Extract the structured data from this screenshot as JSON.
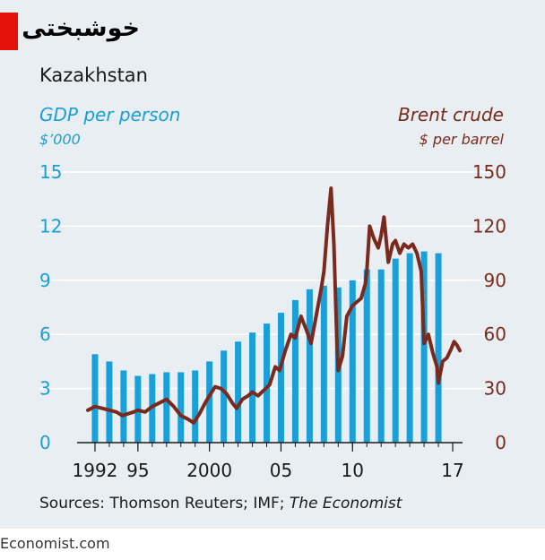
{
  "title": "خوشبختی",
  "subtitle": "Kazakhstan",
  "sources": {
    "prefix": "Sources: Thomson Reuters; IMF; ",
    "italic": "The Economist"
  },
  "footer": "Economist.com",
  "colors": {
    "background": "#e8eef1",
    "gdp_bar": "#1a9fd9",
    "brent_line": "#7a2a1c",
    "accent_red": "#e3120b",
    "grid": "#ffffff"
  },
  "chart_data": {
    "type": "bar",
    "left_axis": {
      "title": "GDP per person",
      "unit": "$’000",
      "ylim": [
        0,
        15
      ],
      "ticks": [
        0,
        3,
        6,
        9,
        12,
        15
      ]
    },
    "right_axis": {
      "title": "Brent crude",
      "unit": "$ per barrel",
      "ylim": [
        0,
        150
      ],
      "ticks": [
        0,
        30,
        60,
        90,
        120,
        150
      ]
    },
    "xlim": [
      1991,
      2017.5
    ],
    "x_ticks": [
      {
        "value": 1992,
        "label": "1992"
      },
      {
        "value": 1995,
        "label": "95"
      },
      {
        "value": 2000,
        "label": "2000"
      },
      {
        "value": 2005,
        "label": "05"
      },
      {
        "value": 2010,
        "label": "10"
      },
      {
        "value": 2017,
        "label": "17"
      }
    ],
    "grid": true,
    "series": [
      {
        "name": "GDP per person",
        "type": "bar",
        "axis": "left",
        "x": [
          1992,
          1993,
          1994,
          1995,
          1996,
          1997,
          1998,
          1999,
          2000,
          2001,
          2002,
          2003,
          2004,
          2005,
          2006,
          2007,
          2008,
          2009,
          2010,
          2011,
          2012,
          2013,
          2014,
          2015,
          2016
        ],
        "values": [
          4.9,
          4.5,
          4.0,
          3.7,
          3.8,
          3.9,
          3.9,
          4.0,
          4.5,
          5.1,
          5.6,
          6.1,
          6.6,
          7.2,
          7.9,
          8.5,
          8.7,
          8.6,
          9.0,
          9.6,
          9.6,
          10.2,
          10.5,
          10.6,
          10.5
        ]
      },
      {
        "name": "Brent crude",
        "type": "line",
        "axis": "right",
        "x": [
          1991.5,
          1992.0,
          1992.5,
          1993.0,
          1993.5,
          1993.9,
          1994.3,
          1994.7,
          1995.0,
          1995.5,
          1996.0,
          1996.5,
          1997.0,
          1997.5,
          1998.0,
          1998.5,
          1998.9,
          1999.3,
          1999.7,
          2000.0,
          2000.4,
          2000.8,
          2001.2,
          2001.6,
          2001.9,
          2002.3,
          2002.7,
          2003.0,
          2003.4,
          2003.8,
          2004.2,
          2004.6,
          2004.9,
          2005.3,
          2005.7,
          2006.0,
          2006.4,
          2006.8,
          2007.1,
          2007.5,
          2007.8,
          2008.0,
          2008.25,
          2008.5,
          2008.7,
          2008.9,
          2009.0,
          2009.3,
          2009.6,
          2010.0,
          2010.3,
          2010.6,
          2010.9,
          2011.0,
          2011.2,
          2011.5,
          2011.8,
          2012.0,
          2012.2,
          2012.5,
          2012.8,
          2013.0,
          2013.3,
          2013.6,
          2013.9,
          2014.2,
          2014.5,
          2014.8,
          2015.0,
          2015.3,
          2015.6,
          2015.9,
          2016.0,
          2016.3,
          2016.6,
          2016.9,
          2017.1,
          2017.3,
          2017.5
        ],
        "values": [
          18,
          20,
          19,
          18,
          17,
          15,
          16,
          17,
          18,
          17,
          20,
          22,
          24,
          20,
          15,
          13,
          11,
          16,
          22,
          26,
          31,
          30,
          27,
          22,
          19,
          24,
          26,
          28,
          26,
          29,
          32,
          42,
          40,
          51,
          60,
          58,
          70,
          62,
          55,
          72,
          85,
          95,
          120,
          141,
          110,
          58,
          40,
          48,
          70,
          76,
          78,
          80,
          88,
          95,
          120,
          113,
          108,
          115,
          125,
          100,
          110,
          112,
          105,
          110,
          108,
          110,
          105,
          95,
          55,
          60,
          50,
          42,
          33,
          45,
          47,
          52,
          56,
          54,
          51
        ]
      }
    ]
  }
}
